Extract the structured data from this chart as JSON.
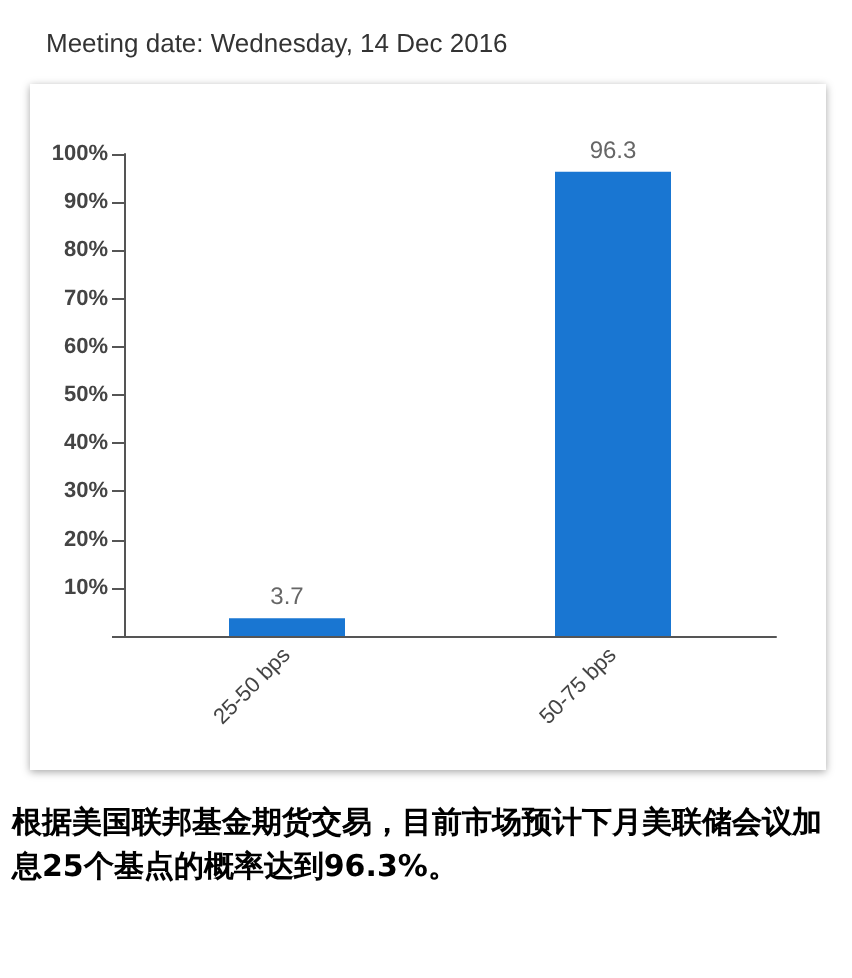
{
  "chart_data": {
    "type": "bar",
    "title": "Meeting date: Wednesday, 14 Dec 2016",
    "categories": [
      "25-50 bps",
      "50-75 bps"
    ],
    "values": [
      3.7,
      96.3
    ],
    "color": "#1976d2",
    "ylim": [
      0,
      100
    ],
    "yticks": [
      {
        "value": 0,
        "label": null
      },
      {
        "value": 10,
        "label": "10%"
      },
      {
        "value": 20,
        "label": "20%"
      },
      {
        "value": 30,
        "label": "30%"
      },
      {
        "value": 40,
        "label": "40%"
      },
      {
        "value": 50,
        "label": "50%"
      },
      {
        "value": 60,
        "label": "60%"
      },
      {
        "value": 70,
        "label": "70%"
      },
      {
        "value": 80,
        "label": "80%"
      },
      {
        "value": 90,
        "label": "90%"
      },
      {
        "value": 100,
        "label": "100%"
      }
    ],
    "grid": false,
    "data_labels": true,
    "annotations": [
      "根据美国联邦基金期货交易，目前市场预计下月美联储会议加息25个基点的概率达到96.3%。"
    ]
  }
}
